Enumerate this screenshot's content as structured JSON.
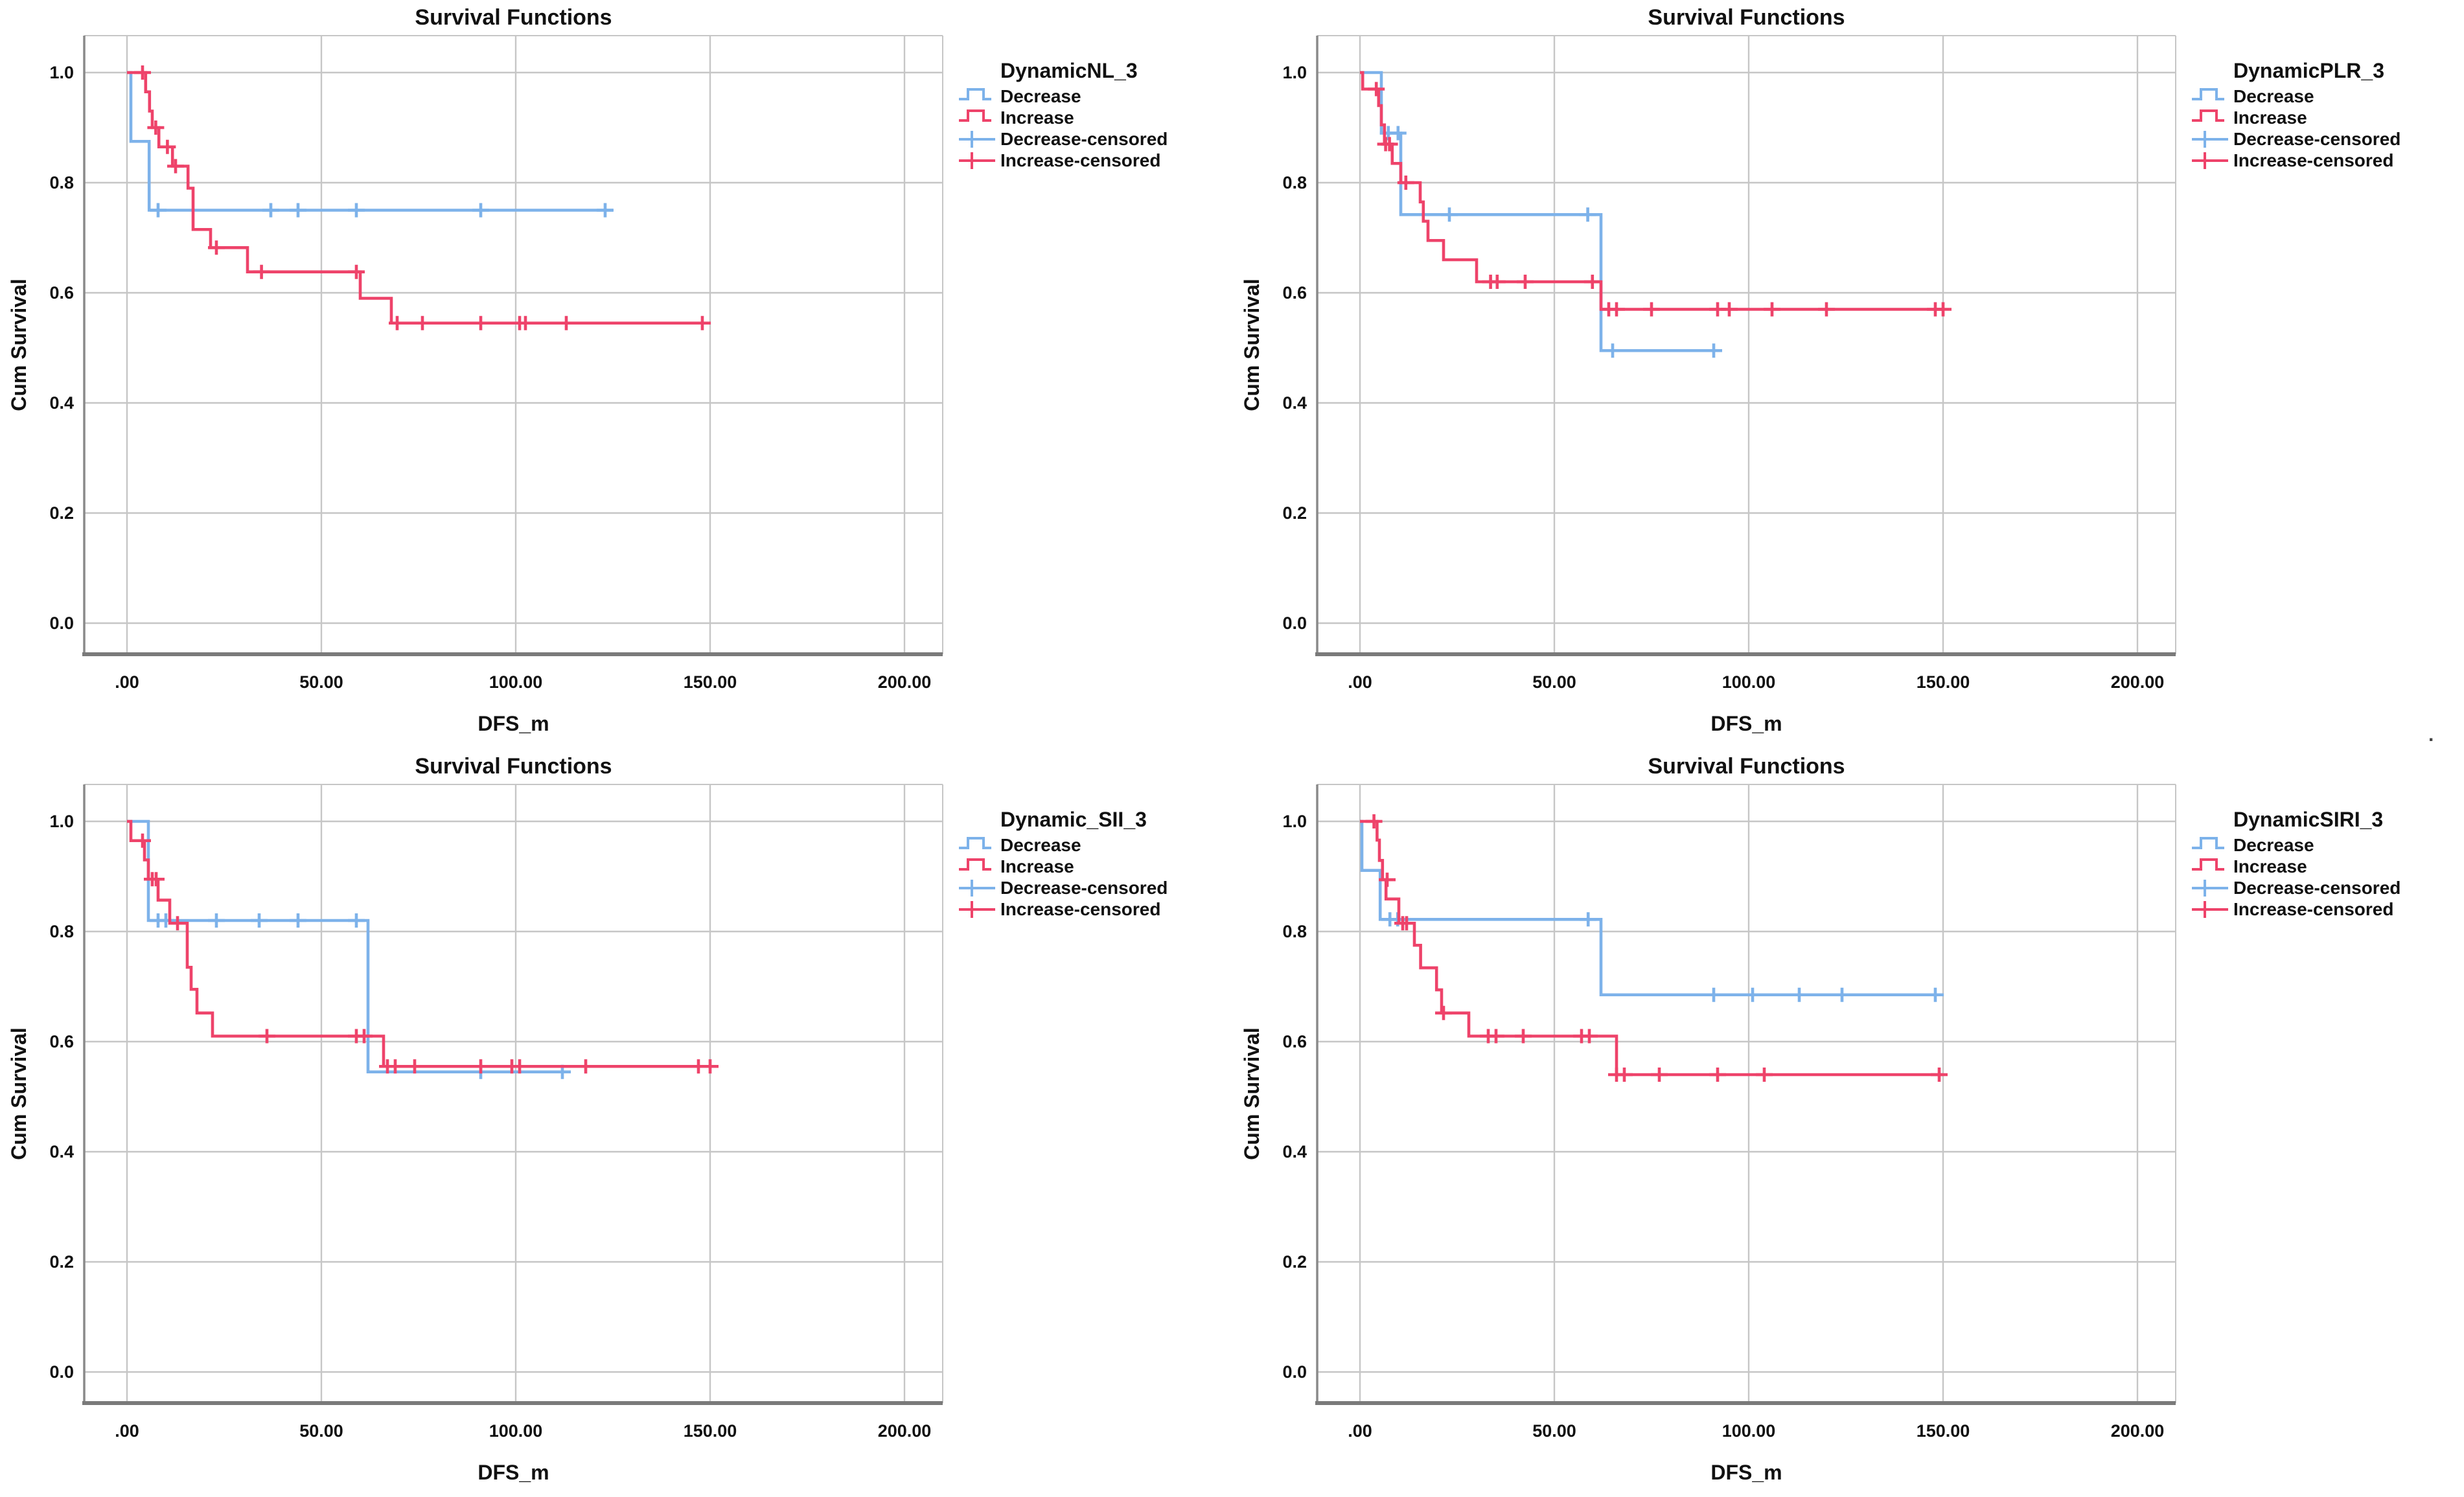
{
  "page": {
    "background": "#ffffff",
    "stray_mark": "."
  },
  "shared": {
    "title": "Survival Functions",
    "xlabel": "DFS_m",
    "ylabel": "Cum Survival",
    "colors": {
      "decrease": "#7DB2EA",
      "increase": "#EE436A",
      "gridline": "#C6C6C6",
      "spine": "#8A8A8A",
      "bottom_spine": "#7A7A7A",
      "text": "#111111"
    },
    "legend_labels": [
      "Decrease",
      "Increase",
      "Decrease-censored",
      "Increase-censored"
    ]
  },
  "chart_data": [
    {
      "type": "line",
      "title": "Survival Functions",
      "legend_title": "DynamicNL_3",
      "xlabel": "DFS_m",
      "ylabel": "Cum Survival",
      "x_ticks": [
        {
          "label": ".00",
          "value": 0
        },
        {
          "label": "50.00",
          "value": 50
        },
        {
          "label": "100.00",
          "value": 100
        },
        {
          "label": "150.00",
          "value": 150
        },
        {
          "label": "200.00",
          "value": 200
        }
      ],
      "y_ticks": [
        {
          "label": "0.0",
          "value": 0.0
        },
        {
          "label": "0.2",
          "value": 0.2
        },
        {
          "label": "0.4",
          "value": 0.4
        },
        {
          "label": "0.6",
          "value": 0.6
        },
        {
          "label": "0.8",
          "value": 0.8
        },
        {
          "label": "1.0",
          "value": 1.0
        }
      ],
      "xlim": [
        -11,
        209
      ],
      "ylim": [
        -0.057,
        1.124
      ],
      "grid": true,
      "legend_position": "right",
      "series": [
        {
          "name": "Decrease",
          "role": "decrease",
          "color": "#7DB2EA",
          "censored_name": "Decrease-censored",
          "steps": [
            [
              0,
              1.0
            ],
            [
              1,
              0.875
            ],
            [
              5.7,
              0.75
            ]
          ],
          "end_t": 125,
          "censored": [
            [
              8,
              0.75
            ],
            [
              37,
              0.75
            ],
            [
              44,
              0.75
            ],
            [
              59,
              0.75
            ],
            [
              91,
              0.75
            ],
            [
              123,
              0.75
            ]
          ]
        },
        {
          "name": "Increase",
          "role": "increase",
          "color": "#EE436A",
          "censored_name": "Increase-censored",
          "steps": [
            [
              0,
              1.0
            ],
            [
              4.8,
              0.965
            ],
            [
              5.8,
              0.93
            ],
            [
              6.5,
              0.9
            ],
            [
              8.2,
              0.865
            ],
            [
              11.7,
              0.83
            ],
            [
              15.7,
              0.79
            ],
            [
              17,
              0.715
            ],
            [
              21.5,
              0.682
            ],
            [
              31,
              0.638
            ],
            [
              60,
              0.59
            ],
            [
              68,
              0.545
            ]
          ],
          "end_t": 150,
          "censored": [
            [
              4,
              1.0
            ],
            [
              7.4,
              0.9
            ],
            [
              10.4,
              0.865
            ],
            [
              12.5,
              0.83
            ],
            [
              23,
              0.682
            ],
            [
              34.6,
              0.638
            ],
            [
              59,
              0.638
            ],
            [
              69.5,
              0.545
            ],
            [
              76,
              0.545
            ],
            [
              91,
              0.545
            ],
            [
              101,
              0.545
            ],
            [
              102.5,
              0.545
            ],
            [
              113,
              0.545
            ],
            [
              148,
              0.545
            ]
          ]
        }
      ]
    },
    {
      "type": "line",
      "title": "Survival Functions",
      "legend_title": "DynamicPLR_3",
      "xlabel": "DFS_m",
      "ylabel": "Cum Survival",
      "x_ticks": [
        {
          "label": ".00",
          "value": 0
        },
        {
          "label": "50.00",
          "value": 50
        },
        {
          "label": "100.00",
          "value": 100
        },
        {
          "label": "150.00",
          "value": 150
        },
        {
          "label": "200.00",
          "value": 200
        }
      ],
      "y_ticks": [
        {
          "label": "0.0",
          "value": 0.0
        },
        {
          "label": "0.2",
          "value": 0.2
        },
        {
          "label": "0.4",
          "value": 0.4
        },
        {
          "label": "0.6",
          "value": 0.6
        },
        {
          "label": "0.8",
          "value": 0.8
        },
        {
          "label": "1.0",
          "value": 1.0
        }
      ],
      "xlim": [
        -11,
        209
      ],
      "ylim": [
        -0.057,
        1.124
      ],
      "grid": true,
      "legend_position": "right",
      "series": [
        {
          "name": "Decrease",
          "role": "decrease",
          "color": "#7DB2EA",
          "censored_name": "Decrease-censored",
          "steps": [
            [
              0,
              1.0
            ],
            [
              5.5,
              0.89
            ],
            [
              10.5,
              0.742
            ],
            [
              62,
              0.495
            ]
          ],
          "end_t": 92,
          "censored": [
            [
              7.3,
              0.89
            ],
            [
              9.8,
              0.89
            ],
            [
              23,
              0.742
            ],
            [
              58.6,
              0.742
            ],
            [
              65,
              0.495
            ],
            [
              91,
              0.495
            ]
          ]
        },
        {
          "name": "Increase",
          "role": "increase",
          "color": "#EE436A",
          "censored_name": "Increase-censored",
          "steps": [
            [
              0,
              1.0
            ],
            [
              0.7,
              0.97
            ],
            [
              4.8,
              0.94
            ],
            [
              5.5,
              0.905
            ],
            [
              6.3,
              0.87
            ],
            [
              8.3,
              0.835
            ],
            [
              10.5,
              0.8
            ],
            [
              15.5,
              0.765
            ],
            [
              16.3,
              0.73
            ],
            [
              17.5,
              0.695
            ],
            [
              21.5,
              0.66
            ],
            [
              30,
              0.62
            ],
            [
              62,
              0.57
            ]
          ],
          "end_t": 150,
          "censored": [
            [
              4.2,
              0.97
            ],
            [
              6.6,
              0.87
            ],
            [
              7.6,
              0.87
            ],
            [
              11.8,
              0.8
            ],
            [
              33.6,
              0.62
            ],
            [
              35.3,
              0.62
            ],
            [
              42.5,
              0.62
            ],
            [
              59.8,
              0.62
            ],
            [
              64,
              0.57
            ],
            [
              66,
              0.57
            ],
            [
              75,
              0.57
            ],
            [
              92,
              0.57
            ],
            [
              95,
              0.57
            ],
            [
              106,
              0.57
            ],
            [
              120,
              0.57
            ],
            [
              148,
              0.57
            ],
            [
              150,
              0.57
            ]
          ]
        }
      ]
    },
    {
      "type": "line",
      "title": "Survival Functions",
      "legend_title": "Dynamic_SII_3",
      "xlabel": "DFS_m",
      "ylabel": "Cum Survival",
      "x_ticks": [
        {
          "label": ".00",
          "value": 0
        },
        {
          "label": "50.00",
          "value": 50
        },
        {
          "label": "100.00",
          "value": 100
        },
        {
          "label": "150.00",
          "value": 150
        },
        {
          "label": "200.00",
          "value": 200
        }
      ],
      "y_ticks": [
        {
          "label": "0.0",
          "value": 0.0
        },
        {
          "label": "0.2",
          "value": 0.2
        },
        {
          "label": "0.4",
          "value": 0.4
        },
        {
          "label": "0.6",
          "value": 0.6
        },
        {
          "label": "0.8",
          "value": 0.8
        },
        {
          "label": "1.0",
          "value": 1.0
        }
      ],
      "xlim": [
        -11,
        209
      ],
      "ylim": [
        -0.057,
        1.124
      ],
      "grid": true,
      "legend_position": "right",
      "series": [
        {
          "name": "Decrease",
          "role": "decrease",
          "color": "#7DB2EA",
          "censored_name": "Decrease-censored",
          "steps": [
            [
              0,
              1.0
            ],
            [
              5.5,
              0.82
            ],
            [
              62,
              0.545
            ]
          ],
          "end_t": 113,
          "censored": [
            [
              8,
              0.82
            ],
            [
              10,
              0.82
            ],
            [
              23,
              0.82
            ],
            [
              34,
              0.82
            ],
            [
              44,
              0.82
            ],
            [
              59,
              0.82
            ],
            [
              91,
              0.545
            ],
            [
              112,
              0.545
            ]
          ]
        },
        {
          "name": "Increase",
          "role": "increase",
          "color": "#EE436A",
          "censored_name": "Increase-censored",
          "steps": [
            [
              0,
              1.0
            ],
            [
              1,
              0.965
            ],
            [
              4.5,
              0.93
            ],
            [
              5.5,
              0.895
            ],
            [
              8,
              0.857
            ],
            [
              11,
              0.815
            ],
            [
              15.5,
              0.735
            ],
            [
              16.5,
              0.695
            ],
            [
              18,
              0.652
            ],
            [
              22,
              0.61
            ],
            [
              66,
              0.555
            ]
          ],
          "end_t": 150,
          "censored": [
            [
              4,
              0.965
            ],
            [
              6.5,
              0.895
            ],
            [
              7.5,
              0.895
            ],
            [
              13,
              0.815
            ],
            [
              36,
              0.61
            ],
            [
              59,
              0.61
            ],
            [
              61,
              0.61
            ],
            [
              67,
              0.555
            ],
            [
              69,
              0.555
            ],
            [
              74,
              0.555
            ],
            [
              91,
              0.555
            ],
            [
              99,
              0.555
            ],
            [
              101,
              0.555
            ],
            [
              118,
              0.555
            ],
            [
              147,
              0.555
            ],
            [
              150,
              0.555
            ]
          ]
        }
      ]
    },
    {
      "type": "line",
      "title": "Survival Functions",
      "legend_title": "DynamicSIRI_3",
      "xlabel": "DFS_m",
      "ylabel": "Cum Survival",
      "x_ticks": [
        {
          "label": ".00",
          "value": 0
        },
        {
          "label": "50.00",
          "value": 50
        },
        {
          "label": "100.00",
          "value": 100
        },
        {
          "label": "150.00",
          "value": 150
        },
        {
          "label": "200.00",
          "value": 200
        }
      ],
      "y_ticks": [
        {
          "label": "0.0",
          "value": 0.0
        },
        {
          "label": "0.2",
          "value": 0.2
        },
        {
          "label": "0.4",
          "value": 0.4
        },
        {
          "label": "0.6",
          "value": 0.6
        },
        {
          "label": "0.8",
          "value": 0.8
        },
        {
          "label": "1.0",
          "value": 1.0
        }
      ],
      "xlim": [
        -11,
        209
      ],
      "ylim": [
        -0.057,
        1.124
      ],
      "grid": true,
      "legend_position": "right",
      "series": [
        {
          "name": "Decrease",
          "role": "decrease",
          "color": "#7DB2EA",
          "censored_name": "Decrease-censored",
          "steps": [
            [
              0,
              1.0
            ],
            [
              0.5,
              0.911
            ],
            [
              5.2,
              0.822
            ],
            [
              62,
              0.685
            ]
          ],
          "end_t": 148,
          "censored": [
            [
              7.7,
              0.822
            ],
            [
              9.7,
              0.822
            ],
            [
              58.7,
              0.822
            ],
            [
              91,
              0.685
            ],
            [
              101,
              0.685
            ],
            [
              113,
              0.685
            ],
            [
              124,
              0.685
            ],
            [
              148,
              0.685
            ]
          ]
        },
        {
          "name": "Increase",
          "role": "increase",
          "color": "#EE436A",
          "censored_name": "Increase-censored",
          "steps": [
            [
              0,
              1.0
            ],
            [
              4.4,
              0.966
            ],
            [
              5,
              0.929
            ],
            [
              5.8,
              0.894
            ],
            [
              6.7,
              0.859
            ],
            [
              10,
              0.815
            ],
            [
              14,
              0.775
            ],
            [
              15.6,
              0.734
            ],
            [
              19.7,
              0.694
            ],
            [
              21,
              0.652
            ],
            [
              28,
              0.61
            ],
            [
              66,
              0.54
            ]
          ],
          "end_t": 150,
          "censored": [
            [
              3.6,
              1.0
            ],
            [
              7,
              0.894
            ],
            [
              11,
              0.815
            ],
            [
              12,
              0.815
            ],
            [
              21.5,
              0.652
            ],
            [
              33,
              0.61
            ],
            [
              35,
              0.61
            ],
            [
              42,
              0.61
            ],
            [
              57,
              0.61
            ],
            [
              59,
              0.61
            ],
            [
              66,
              0.54
            ],
            [
              68,
              0.54
            ],
            [
              77,
              0.54
            ],
            [
              92,
              0.54
            ],
            [
              104,
              0.54
            ],
            [
              149,
              0.54
            ]
          ]
        }
      ]
    }
  ]
}
